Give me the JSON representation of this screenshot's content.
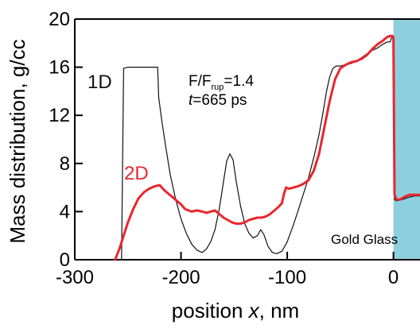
{
  "chart_data": {
    "type": "line",
    "title": "",
    "xlabel": "position x, nm",
    "xlabel_parts": {
      "before": "position ",
      "italic": "x",
      "after": ", nm"
    },
    "ylabel": "Mass distribution, g/cc",
    "xlim": [
      -300,
      25
    ],
    "ylim": [
      0,
      20
    ],
    "xticks": [
      -300,
      -200,
      -100,
      0
    ],
    "xtick_labels": [
      "-300",
      "-200",
      "-100",
      "0"
    ],
    "yticks": [
      0,
      4,
      8,
      12,
      16,
      20
    ],
    "ytick_labels": [
      "0",
      "4",
      "8",
      "12",
      "16",
      "20"
    ],
    "grid": false,
    "colors": {
      "series_1d": "#111111",
      "series_2d": "#e8272d",
      "glass_region": "#8ecfdd"
    },
    "annotations": {
      "ratio": {
        "main": "F/F",
        "sub": "rup",
        "suffix": "=1.4"
      },
      "time": {
        "italic": "t",
        "suffix": "=665 ps"
      }
    },
    "regions": [
      {
        "name": "glass",
        "x_start": 0,
        "x_end": 25,
        "label": "Gold Glass"
      }
    ],
    "series": [
      {
        "name": "1D",
        "color": "#111111",
        "points": [
          [
            -256,
            0
          ],
          [
            -254,
            15.9
          ],
          [
            -250,
            16.0
          ],
          [
            -240,
            16.0
          ],
          [
            -230,
            16.0
          ],
          [
            -222,
            16.0
          ],
          [
            -221,
            13.5
          ],
          [
            -218,
            11.5
          ],
          [
            -214,
            9.2
          ],
          [
            -210,
            7.0
          ],
          [
            -205,
            5.0
          ],
          [
            -200,
            3.4
          ],
          [
            -195,
            2.2
          ],
          [
            -190,
            1.3
          ],
          [
            -185,
            0.8
          ],
          [
            -180,
            0.6
          ],
          [
            -176,
            0.9
          ],
          [
            -172,
            1.5
          ],
          [
            -168,
            2.5
          ],
          [
            -164,
            4.2
          ],
          [
            -160,
            6.5
          ],
          [
            -157,
            8.2
          ],
          [
            -154,
            8.8
          ],
          [
            -151,
            8.3
          ],
          [
            -148,
            6.5
          ],
          [
            -144,
            4.5
          ],
          [
            -140,
            3.0
          ],
          [
            -136,
            2.2
          ],
          [
            -132,
            1.8
          ],
          [
            -128,
            2.0
          ],
          [
            -125,
            2.5
          ],
          [
            -122,
            2.1
          ],
          [
            -118,
            1.1
          ],
          [
            -114,
            0.6
          ],
          [
            -110,
            0.5
          ],
          [
            -105,
            0.7
          ],
          [
            -100,
            1.5
          ],
          [
            -95,
            2.7
          ],
          [
            -90,
            4.0
          ],
          [
            -85,
            5.4
          ],
          [
            -80,
            6.8
          ],
          [
            -75,
            8.5
          ],
          [
            -70,
            10.4
          ],
          [
            -66,
            12.4
          ],
          [
            -63,
            14.0
          ],
          [
            -60,
            15.2
          ],
          [
            -57,
            15.9
          ],
          [
            -54,
            16.1
          ],
          [
            -50,
            16.1
          ],
          [
            -45,
            16.2
          ],
          [
            -40,
            16.3
          ],
          [
            -35,
            16.5
          ],
          [
            -30,
            16.8
          ],
          [
            -25,
            17.1
          ],
          [
            -20,
            17.4
          ],
          [
            -15,
            17.6
          ],
          [
            -10,
            17.9
          ],
          [
            -6,
            18.1
          ],
          [
            -3,
            18.1
          ],
          [
            -2,
            18.4
          ],
          [
            0,
            18.6
          ],
          [
            1,
            5.0
          ],
          [
            3,
            4.9
          ],
          [
            8,
            5.0
          ],
          [
            15,
            5.2
          ],
          [
            20,
            5.3
          ],
          [
            25,
            5.3
          ]
        ]
      },
      {
        "name": "2D",
        "color": "#e8272d",
        "points": [
          [
            -262,
            0
          ],
          [
            -258,
            0.9
          ],
          [
            -254,
            2.0
          ],
          [
            -250,
            3.1
          ],
          [
            -245,
            4.2
          ],
          [
            -240,
            5.1
          ],
          [
            -235,
            5.6
          ],
          [
            -230,
            5.9
          ],
          [
            -225,
            6.1
          ],
          [
            -220,
            6.2
          ],
          [
            -216,
            5.8
          ],
          [
            -212,
            5.5
          ],
          [
            -208,
            5.2
          ],
          [
            -204,
            4.9
          ],
          [
            -200,
            4.6
          ],
          [
            -196,
            4.2
          ],
          [
            -190,
            4.0
          ],
          [
            -185,
            4.1
          ],
          [
            -180,
            4.0
          ],
          [
            -176,
            3.9
          ],
          [
            -172,
            4.0
          ],
          [
            -168,
            4.1
          ],
          [
            -164,
            3.8
          ],
          [
            -160,
            3.5
          ],
          [
            -156,
            3.3
          ],
          [
            -152,
            3.1
          ],
          [
            -148,
            3.0
          ],
          [
            -144,
            3.0
          ],
          [
            -140,
            3.1
          ],
          [
            -136,
            3.3
          ],
          [
            -132,
            3.4
          ],
          [
            -128,
            3.5
          ],
          [
            -124,
            3.5
          ],
          [
            -120,
            3.6
          ],
          [
            -116,
            3.8
          ],
          [
            -112,
            4.1
          ],
          [
            -108,
            4.4
          ],
          [
            -105,
            4.7
          ],
          [
            -103,
            5.5
          ],
          [
            -101,
            6.0
          ],
          [
            -98,
            5.9
          ],
          [
            -94,
            6.0
          ],
          [
            -90,
            6.1
          ],
          [
            -85,
            6.3
          ],
          [
            -80,
            6.6
          ],
          [
            -75,
            7.4
          ],
          [
            -70,
            8.8
          ],
          [
            -65,
            11.0
          ],
          [
            -60,
            13.2
          ],
          [
            -55,
            15.0
          ],
          [
            -50,
            15.9
          ],
          [
            -45,
            16.2
          ],
          [
            -40,
            16.4
          ],
          [
            -35,
            16.5
          ],
          [
            -30,
            16.7
          ],
          [
            -25,
            17.0
          ],
          [
            -20,
            17.5
          ],
          [
            -15,
            17.9
          ],
          [
            -10,
            18.2
          ],
          [
            -6,
            18.5
          ],
          [
            -3,
            18.6
          ],
          [
            -1,
            18.6
          ],
          [
            0,
            18.4
          ],
          [
            1,
            5.4
          ],
          [
            3,
            5.0
          ],
          [
            6,
            5.0
          ],
          [
            10,
            5.2
          ],
          [
            15,
            5.4
          ],
          [
            20,
            5.4
          ],
          [
            25,
            5.4
          ]
        ]
      }
    ]
  }
}
